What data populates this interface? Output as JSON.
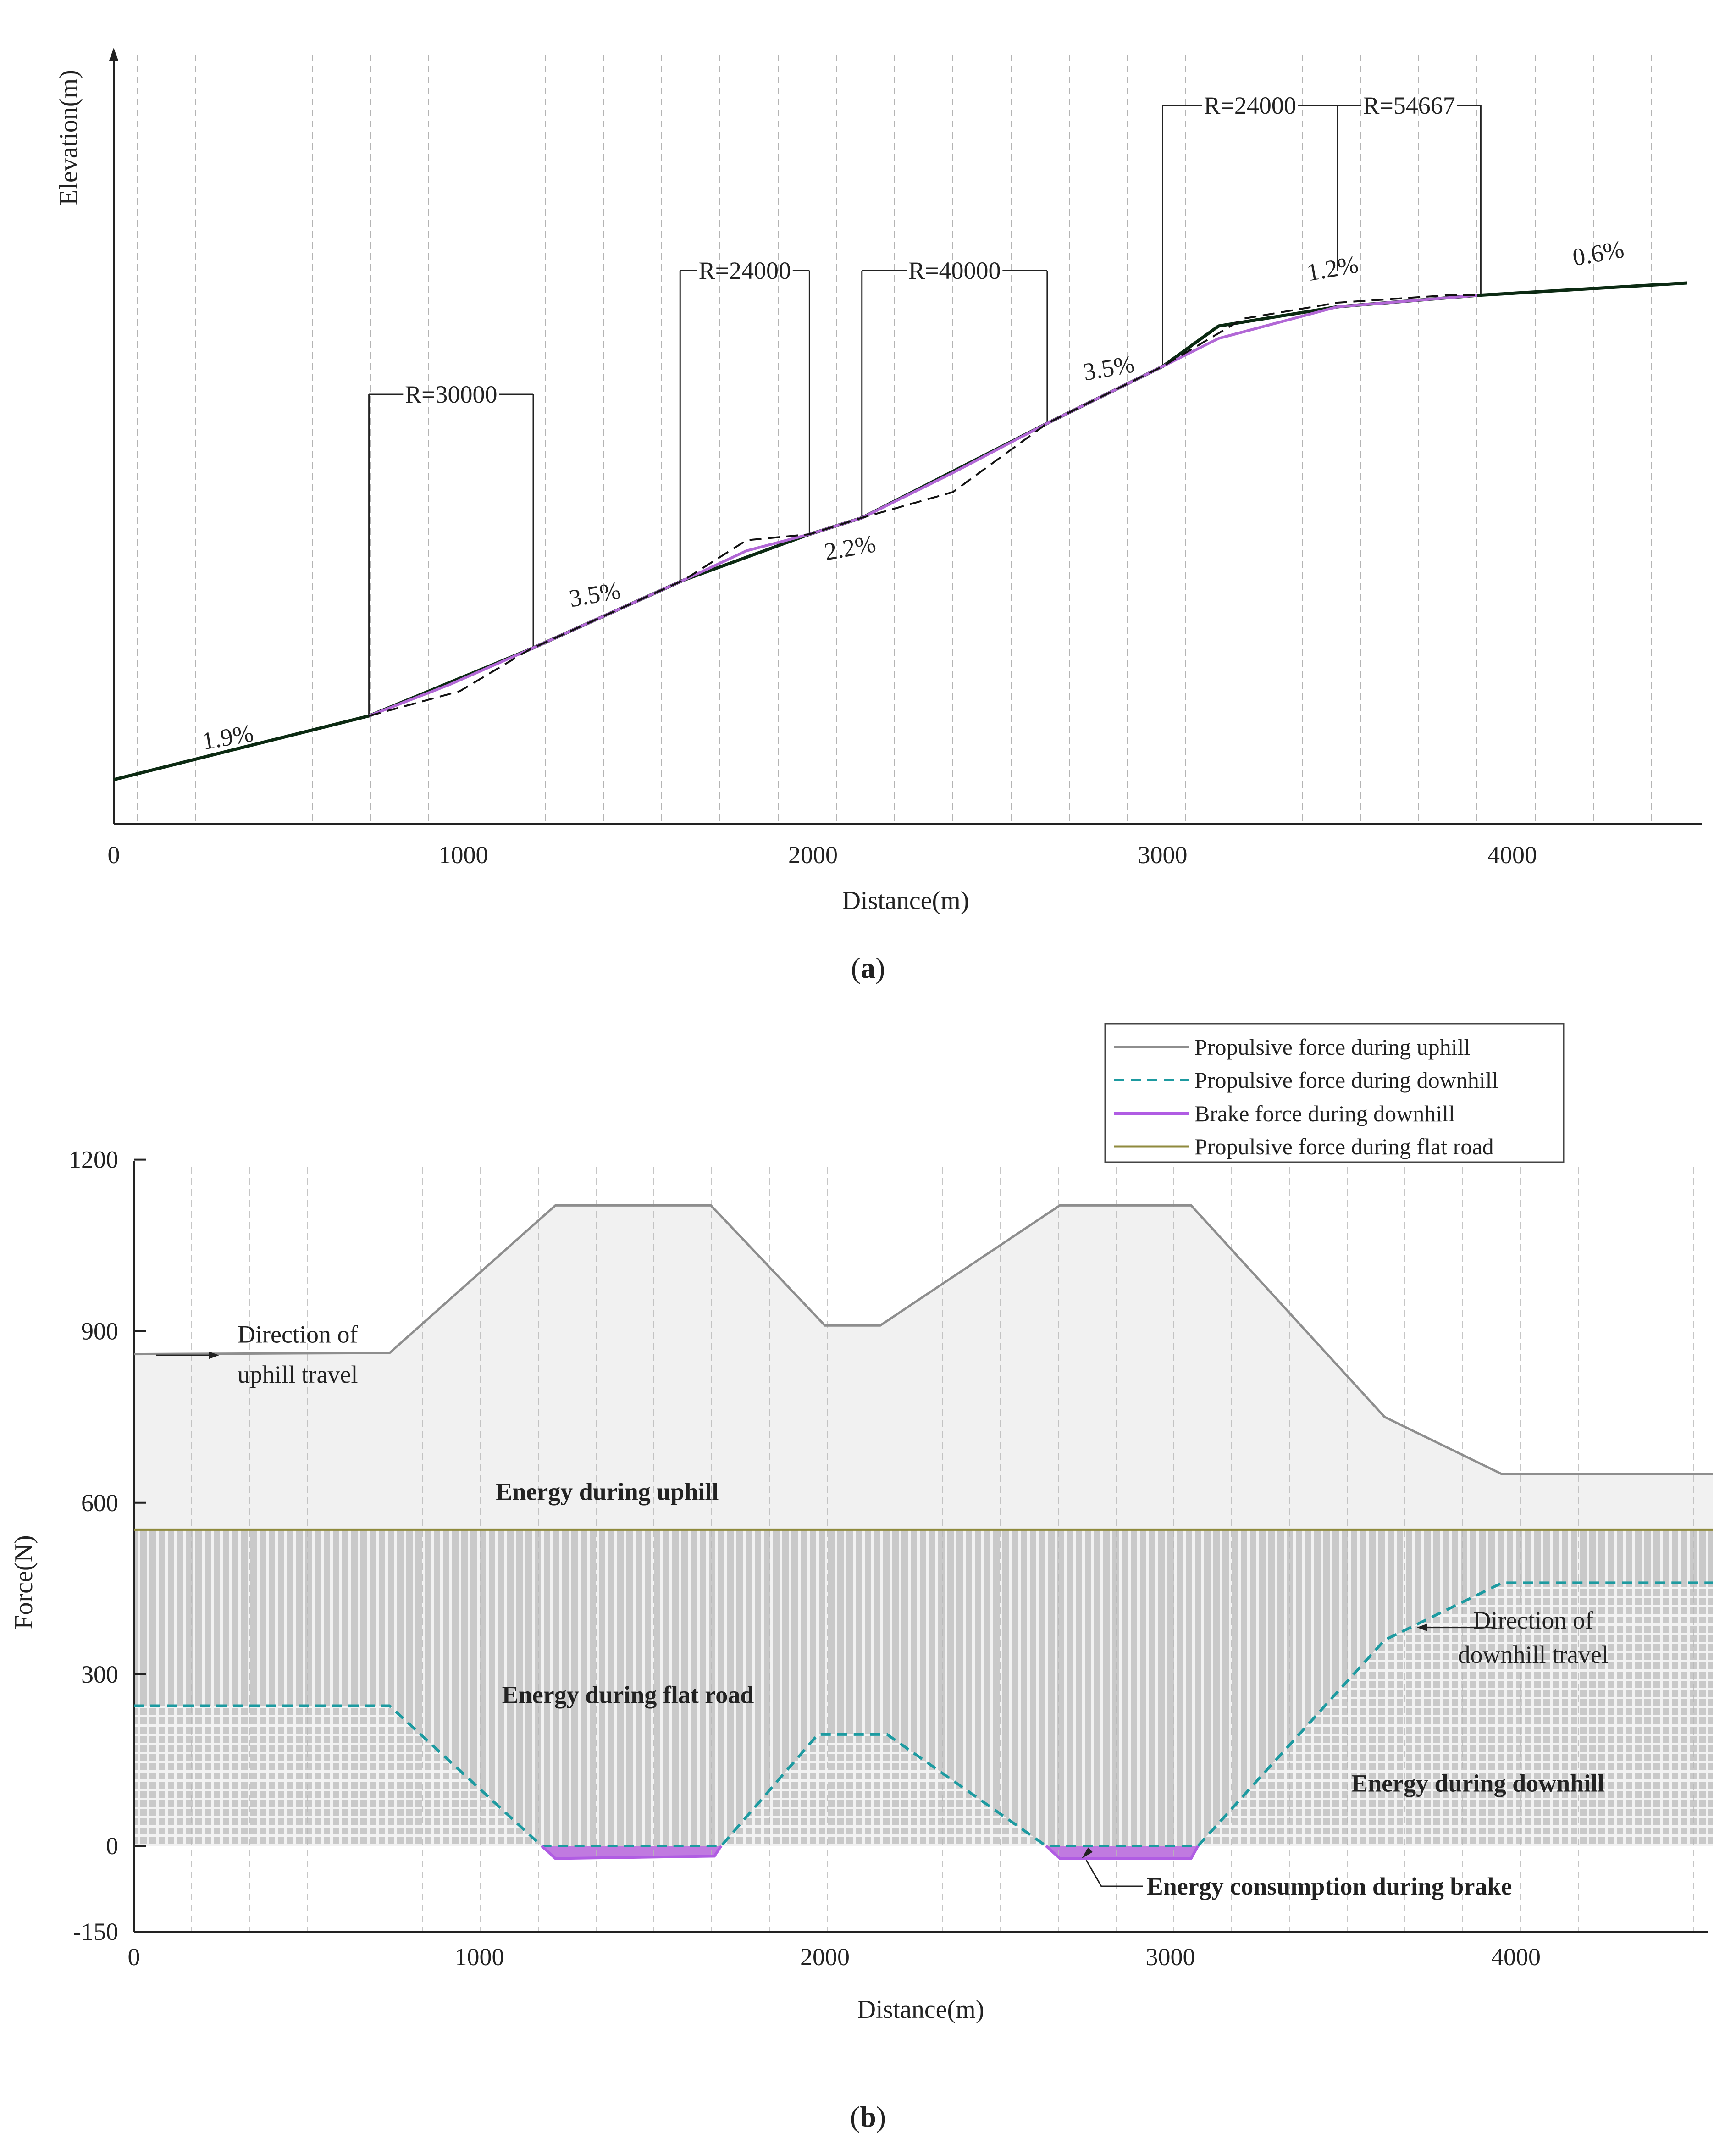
{
  "chart_data": [
    {
      "type": "line",
      "panel": "(a)",
      "caption_letter": "a",
      "xlabel": "Distance(m)",
      "ylabel": "Elevation(m)",
      "xlim": [
        0,
        4550
      ],
      "xticks": [
        "0",
        "1000",
        "2000",
        "3000",
        "4000"
      ],
      "series": [
        {
          "name": "Gradient line",
          "color": "#0b2a12",
          "x": [
            0,
            730,
            1190,
            1630,
            1990,
            2140,
            2670,
            3000,
            3160,
            3500,
            3900,
            4500
          ],
          "y": [
            0,
            139,
            284,
            435,
            535,
            571,
            777,
            901,
            989,
            1031,
            1056,
            1083
          ]
        },
        {
          "name": "Vertical curve (magenta)",
          "color": "#b268d6",
          "x": [
            730,
            960,
            1190,
            1630,
            1810,
            1990,
            2140,
            2400,
            2670,
            3000,
            3160,
            3500,
            3900
          ],
          "y": [
            139,
            207,
            284,
            435,
            499,
            535,
            571,
            669,
            777,
            901,
            962,
            1031,
            1056
          ]
        },
        {
          "name": "Approximation (dashed)",
          "color": "#111111",
          "x": [
            730,
            990,
            1190,
            1630,
            1810,
            1990,
            2140,
            2400,
            2670,
            3000,
            3230,
            3500,
            3810,
            3900
          ],
          "y": [
            139,
            193,
            284,
            435,
            522,
            535,
            571,
            627,
            777,
            901,
            1005,
            1040,
            1056,
            1056
          ]
        }
      ],
      "annotations": [
        {
          "text": "1.9%",
          "x": 330,
          "y": 75
        },
        {
          "text": "3.5%",
          "x": 1380,
          "y": 386
        },
        {
          "text": "2.2%",
          "x": 2110,
          "y": 488
        },
        {
          "text": "3.5%",
          "x": 2850,
          "y": 880
        },
        {
          "text": "1.2%",
          "x": 3490,
          "y": 1097
        },
        {
          "text": "0.6%",
          "x": 4250,
          "y": 1130
        }
      ],
      "radii": [
        {
          "text": "R=30000",
          "x1": 730,
          "x2": 1200,
          "y": 840
        },
        {
          "text": "R=24000",
          "x1": 1620,
          "x2": 1990,
          "y": 1110
        },
        {
          "text": "R=40000",
          "x1": 2140,
          "x2": 2670,
          "y": 1110
        },
        {
          "text": "R=24000",
          "x1": 3000,
          "x2": 3500,
          "y": 1470
        },
        {
          "text": "R=54667",
          "x1": 3500,
          "x2": 3910,
          "y": 1470
        }
      ]
    },
    {
      "type": "area",
      "panel": "(b)",
      "caption_letter": "b",
      "xlabel": "Distance(m)",
      "ylabel": "Force(N)",
      "xlim": [
        0,
        4570
      ],
      "ylim": [
        -150,
        1200
      ],
      "yticks": [
        1200,
        900,
        600,
        300,
        0,
        -150
      ],
      "xticks": [
        0,
        1000,
        2000,
        3000,
        4000
      ],
      "series": [
        {
          "name": "Propulsive force during uphill",
          "color": "#8e8e8e",
          "dash": "solid",
          "x": [
            0,
            740,
            1220,
            1670,
            2000,
            2160,
            2680,
            3060,
            3620,
            3960,
            4570
          ],
          "y": [
            860,
            862,
            1120,
            1120,
            910,
            910,
            1120,
            1120,
            750,
            650,
            650
          ]
        },
        {
          "name": "Propulsive force during downhill",
          "color": "#1d9aa0",
          "dash": "dashed",
          "x": [
            0,
            740,
            1180,
            1700,
            1980,
            2180,
            2640,
            3080,
            3620,
            3960,
            4570
          ],
          "y": [
            245,
            245,
            0,
            0,
            195,
            195,
            0,
            0,
            360,
            460,
            460
          ]
        },
        {
          "name": "Brake force during downhill",
          "color": "#b05ce3",
          "dash": "solid",
          "segments": [
            {
              "x": [
                1180,
                1220,
                1680,
                1700
              ],
              "y": [
                0,
                -22,
                -18,
                0
              ]
            },
            {
              "x": [
                2640,
                2680,
                3060,
                3080
              ],
              "y": [
                0,
                -22,
                -22,
                0
              ]
            }
          ]
        },
        {
          "name": "Propulsive force during flat road",
          "color": "#8f8a3d",
          "dash": "solid",
          "x": [
            0,
            4570
          ],
          "y": [
            553,
            553
          ]
        }
      ],
      "annotations": [
        {
          "text": "Direction of",
          "x": 300,
          "y": 880
        },
        {
          "text": "uphill travel",
          "x": 300,
          "y": 810
        },
        {
          "text": "Energy during uphill",
          "x": 1370,
          "y": 605
        },
        {
          "text": "Energy during flat road",
          "x": 1430,
          "y": 250
        },
        {
          "text": "Direction of",
          "x": 4050,
          "y": 380
        },
        {
          "text": "downhill travel",
          "x": 4050,
          "y": 320
        },
        {
          "text": "Energy during downhill",
          "x": 3890,
          "y": 95
        },
        {
          "text": "Energy consumption during brake",
          "x": 3460,
          "y": -85
        }
      ]
    }
  ]
}
